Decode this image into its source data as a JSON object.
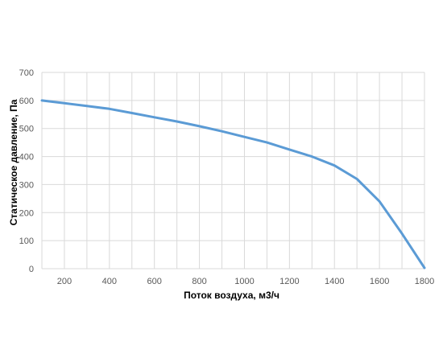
{
  "chart_data": {
    "type": "line",
    "title": "",
    "xlabel": "Поток воздуха, м3/ч",
    "ylabel": "Статическое давление, Па",
    "xlim": [
      100,
      1800
    ],
    "ylim": [
      0,
      700
    ],
    "x_ticks": [
      200,
      400,
      600,
      800,
      1000,
      1200,
      1400,
      1600,
      1800
    ],
    "y_ticks": [
      0,
      100,
      200,
      300,
      400,
      500,
      600,
      700
    ],
    "x_minor_grid": [
      100,
      300,
      500,
      700,
      900,
      1100,
      1300,
      1500,
      1700
    ],
    "grid": true,
    "legend": "none",
    "series": [
      {
        "color": "#5b9bd5",
        "x": [
          100,
          200,
          300,
          400,
          500,
          600,
          700,
          800,
          900,
          1000,
          1100,
          1200,
          1300,
          1400,
          1500,
          1600,
          1700,
          1800
        ],
        "y": [
          600,
          590,
          580,
          570,
          555,
          540,
          525,
          508,
          490,
          470,
          450,
          425,
          400,
          368,
          320,
          240,
          125,
          3
        ]
      }
    ]
  }
}
